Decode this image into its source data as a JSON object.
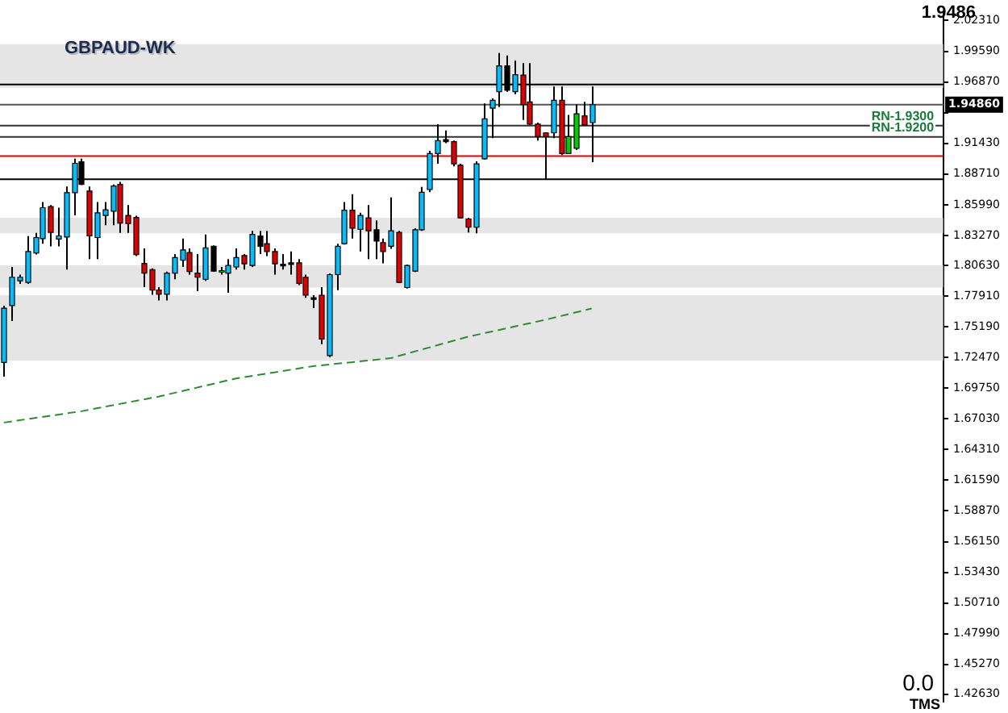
{
  "chart_data": {
    "type": "candlestick",
    "title": "GBPAUD-WK",
    "categories": [
      null,
      null,
      null,
      null,
      null,
      null,
      null,
      null,
      null,
      null,
      null,
      null,
      null,
      null,
      null,
      null,
      null,
      null,
      null,
      null,
      null,
      null,
      null,
      null,
      null,
      null,
      null,
      null,
      null,
      null,
      null,
      null,
      null,
      null,
      null,
      null,
      null,
      null,
      null,
      null,
      null,
      null,
      null,
      null,
      null,
      null,
      null,
      null,
      null,
      null,
      null,
      null,
      null,
      null,
      null,
      null,
      null,
      null,
      null,
      null,
      null,
      null,
      null,
      null,
      null,
      null,
      null,
      null,
      null,
      null,
      null,
      null,
      null,
      null,
      null,
      null,
      null,
      null,
      null,
      null,
      null,
      null,
      null,
      null,
      null,
      null,
      null,
      null,
      null,
      null,
      null,
      null,
      null,
      null,
      null,
      null,
      null,
      null,
      null,
      null,
      null,
      null,
      null,
      null,
      null,
      null,
      null,
      null,
      null,
      null,
      null,
      null,
      null,
      null,
      null,
      null,
      null,
      null,
      null,
      null,
      null,
      null
    ],
    "ohlc": [
      [
        1.7203,
        1.7706,
        1.7076,
        1.7683
      ],
      [
        1.7706,
        1.8048,
        1.7569,
        1.7957
      ],
      [
        1.7925,
        1.798,
        1.7898,
        1.7957
      ],
      [
        1.7912,
        1.8322,
        1.7898,
        1.8185
      ],
      [
        1.8172,
        1.835,
        1.8158,
        1.8309
      ],
      [
        1.8299,
        1.8624,
        1.8254,
        1.8573
      ],
      [
        1.8583,
        1.8597,
        1.8231,
        1.8354
      ],
      [
        1.8295,
        1.8573,
        1.8231,
        1.8323
      ],
      [
        1.8313,
        1.8761,
        1.8025,
        1.8706
      ],
      [
        1.8706,
        1.9008,
        1.8505,
        1.8966
      ],
      [
        1.898,
        1.9008,
        1.8775,
        1.8779
      ],
      [
        1.872,
        1.8761,
        1.8117,
        1.8323
      ],
      [
        1.8309,
        1.8624,
        1.8117,
        1.8528
      ],
      [
        1.8505,
        1.8624,
        1.8418,
        1.8555
      ],
      [
        1.8542,
        1.8779,
        1.8418,
        1.8765
      ],
      [
        1.8779,
        1.8802,
        1.835,
        1.8436
      ],
      [
        1.8505,
        1.8597,
        1.835,
        1.8432
      ],
      [
        1.8487,
        1.8501,
        1.8144,
        1.8158
      ],
      [
        1.808,
        1.8213,
        1.787,
        1.7994
      ],
      [
        1.8025,
        1.8035,
        1.7802,
        1.7843
      ],
      [
        1.7843,
        1.787,
        1.7751,
        1.7806
      ],
      [
        1.7806,
        1.8007,
        1.7751,
        1.7994
      ],
      [
        1.7994,
        1.8162,
        1.7939,
        1.8131
      ],
      [
        1.8107,
        1.8299,
        1.8048,
        1.8199
      ],
      [
        1.8176,
        1.8213,
        1.798,
        1.8007
      ],
      [
        1.7994,
        1.8162,
        1.7833,
        1.7957
      ],
      [
        1.7939,
        1.8336,
        1.7925,
        1.8217
      ],
      [
        1.8231,
        1.824,
        1.8007,
        1.8011
      ],
      [
        1.8011,
        1.8048,
        1.798,
        1.8016
      ],
      [
        1.7994,
        1.8117,
        1.782,
        1.8062
      ],
      [
        1.8048,
        1.8213,
        1.8025,
        1.8131
      ],
      [
        1.8149,
        1.8162,
        1.8025,
        1.8076
      ],
      [
        1.8062,
        1.8368,
        1.8048,
        1.8336
      ],
      [
        1.8323,
        1.8368,
        1.8162,
        1.8231
      ],
      [
        1.8254,
        1.8368,
        1.8144,
        1.8185
      ],
      [
        1.8185,
        1.8213,
        1.798,
        1.8076
      ],
      [
        1.8072,
        1.8162,
        1.8025,
        1.8058
      ],
      [
        1.8085,
        1.8185,
        1.798,
        1.8072
      ],
      [
        1.8085,
        1.8117,
        1.7888,
        1.7902
      ],
      [
        1.7957,
        1.798,
        1.7775,
        1.7798
      ],
      [
        1.7775,
        1.7798,
        1.7683,
        1.7765
      ],
      [
        1.7798,
        1.787,
        1.7364,
        1.7409
      ],
      [
        1.7263,
        1.799,
        1.725,
        1.798
      ],
      [
        1.798,
        1.8254,
        1.7843,
        1.8231
      ],
      [
        1.8254,
        1.8624,
        1.8247,
        1.8551
      ],
      [
        1.8551,
        1.8692,
        1.8299,
        1.8391
      ],
      [
        1.8381,
        1.8528,
        1.8185,
        1.8505
      ],
      [
        1.8483,
        1.8597,
        1.8117,
        1.8368
      ],
      [
        1.8377,
        1.846,
        1.8117,
        1.8277
      ],
      [
        1.8264,
        1.8299,
        1.808,
        1.8185
      ],
      [
        1.8231,
        1.8665,
        1.8209,
        1.8368
      ],
      [
        1.8354,
        1.8368,
        1.7905,
        1.7912
      ],
      [
        1.7866,
        1.807,
        1.7857,
        1.8062
      ],
      [
        1.8011,
        1.8391,
        1.8003,
        1.8377
      ],
      [
        1.8377,
        1.8757,
        1.8368,
        1.871
      ],
      [
        1.8734,
        1.9076,
        1.871,
        1.9053
      ],
      [
        1.9053,
        1.9313,
        1.8962,
        1.9168
      ],
      [
        1.9176,
        1.9258,
        1.9144,
        1.9158
      ],
      [
        1.9158,
        1.9168,
        1.8939,
        1.8962
      ],
      [
        1.8949,
        1.8962,
        1.8476,
        1.8483
      ],
      [
        1.8473,
        1.8483,
        1.8354,
        1.8401
      ],
      [
        1.8401,
        1.8984,
        1.8346,
        1.8962
      ],
      [
        1.9007,
        1.9497,
        1.9,
        1.936
      ],
      [
        1.9455,
        1.9542,
        1.919,
        1.9524
      ],
      [
        1.9601,
        1.9943,
        1.9464,
        1.9829
      ],
      [
        1.9829,
        1.9921,
        1.9601,
        1.9614
      ],
      [
        1.9601,
        1.9875,
        1.9579,
        1.9751
      ],
      [
        1.9747,
        1.9853,
        1.935,
        1.9487
      ],
      [
        1.951,
        1.9853,
        1.9305,
        1.9313
      ],
      [
        1.9313,
        1.9327,
        1.9168,
        1.9203
      ],
      [
        1.9236,
        1.924,
        1.8825,
        1.9203
      ],
      [
        1.9236,
        1.9647,
        1.919,
        1.9524
      ],
      [
        1.9524,
        1.9647,
        1.9039,
        1.9053
      ],
      [
        1.9053,
        1.9395,
        1.9049,
        1.9203
      ],
      [
        1.9099,
        1.9487,
        1.9086,
        1.9405
      ],
      [
        1.9387,
        1.951,
        1.9298,
        1.9305
      ],
      [
        1.9327,
        1.9647,
        1.8976,
        1.9486
      ],
      null,
      null,
      null,
      null,
      null,
      null,
      null,
      null,
      null,
      null,
      null,
      null,
      null,
      null,
      null,
      null,
      null,
      null,
      null,
      null,
      null,
      null,
      null,
      null,
      null,
      null,
      null,
      null,
      null,
      null,
      null,
      null,
      null,
      null,
      null,
      null,
      null,
      null,
      null,
      null,
      null,
      null,
      null,
      null,
      null
    ],
    "colors": [
      "#00bfff",
      "#00bfff",
      "#00bfff",
      "#00bfff",
      "#00bfff",
      "#00bfff",
      "#e00000",
      "#00bfff",
      "#00bfff",
      "#00bfff",
      "#000000",
      "#e00000",
      "#00bfff",
      "#00bfff",
      "#00bfff",
      "#e00000",
      "#e00000",
      "#e00000",
      "#e00000",
      "#e00000",
      "#e00000",
      "#00bfff",
      "#00bfff",
      "#00bfff",
      "#e00000",
      "#e00000",
      "#00bfff",
      "#000000",
      "#00cc00",
      "#00bfff",
      "#00bfff",
      "#e00000",
      "#00bfff",
      "#000000",
      "#e00000",
      "#e00000",
      "#000000",
      "#000000",
      "#e00000",
      "#e00000",
      "#000000",
      "#e00000",
      "#00bfff",
      "#00bfff",
      "#00bfff",
      "#e00000",
      "#00bfff",
      "#e00000",
      "#000000",
      "#e00000",
      "#00bfff",
      "#e00000",
      "#00bfff",
      "#00bfff",
      "#00bfff",
      "#00bfff",
      "#00bfff",
      "#000000",
      "#e00000",
      "#e00000",
      "#e00000",
      "#00bfff",
      "#00bfff",
      "#00bfff",
      "#00bfff",
      "#000000",
      "#00bfff",
      "#e00000",
      "#e00000",
      "#e00000",
      "#e00000",
      "#00bfff",
      "#e00000",
      "#00cc00",
      "#00cc00",
      "#e00000",
      "#00bfff",
      null,
      null,
      null,
      null,
      null,
      null,
      null,
      null,
      null,
      null,
      null,
      null,
      null,
      null,
      null,
      null,
      null,
      null,
      null,
      null,
      null,
      null,
      null,
      null,
      null,
      null,
      null,
      null,
      null,
      null,
      null,
      null,
      null,
      null,
      null,
      null,
      null,
      null,
      null,
      null,
      null,
      null,
      null,
      null,
      null
    ],
    "series": [
      {
        "type": "line",
        "color": "#2e8b2e",
        "line_style": "dashed",
        "marker": "none",
        "values": [
          1.667,
          null,
          null,
          null,
          null,
          null,
          null,
          null,
          null,
          null,
          1.677,
          null,
          null,
          null,
          null,
          null,
          null,
          null,
          null,
          null,
          1.69,
          null,
          null,
          null,
          null,
          null,
          null,
          null,
          null,
          null,
          1.706,
          null,
          null,
          null,
          null,
          null,
          null,
          null,
          null,
          null,
          1.717,
          null,
          null,
          null,
          null,
          null,
          null,
          null,
          null,
          null,
          1.724,
          null,
          null,
          null,
          null,
          null,
          null,
          null,
          null,
          null,
          1.743,
          null,
          null,
          null,
          null,
          null,
          null,
          null,
          null,
          null,
          1.758,
          null,
          null,
          null,
          null,
          null,
          1.768,
          null,
          null,
          null,
          null,
          null,
          null,
          null,
          null,
          null,
          null,
          null,
          null,
          null,
          null,
          null,
          null,
          null,
          null,
          null,
          null,
          null,
          null,
          null,
          null,
          null,
          null,
          null,
          null,
          null,
          null,
          null,
          null,
          null,
          null,
          null,
          null,
          null,
          null,
          null,
          null,
          null,
          null,
          null,
          null,
          null
        ]
      }
    ],
    "ylim": [
      1.42,
      2.031
    ],
    "yticks": [
      {
        "value": 2.0231,
        "label": "2.02310"
      },
      {
        "value": 1.9959,
        "label": "1.99590"
      },
      {
        "value": 1.9687,
        "label": "1.96870"
      },
      {
        "value": 1.9414,
        "label": null
      },
      {
        "value": 1.9143,
        "label": "1.91430"
      },
      {
        "value": 1.8871,
        "label": "1.88710"
      },
      {
        "value": 1.8599,
        "label": "1.85990"
      },
      {
        "value": 1.8327,
        "label": "1.83270"
      },
      {
        "value": 1.8063,
        "label": "1.80630"
      },
      {
        "value": 1.7791,
        "label": "1.77910"
      },
      {
        "value": 1.7519,
        "label": "1.75190"
      },
      {
        "value": 1.7247,
        "label": "1.72470"
      },
      {
        "value": 1.6975,
        "label": "1.69750"
      },
      {
        "value": 1.6703,
        "label": "1.67030"
      },
      {
        "value": 1.6431,
        "label": "1.64310"
      },
      {
        "value": 1.6159,
        "label": "1.61590"
      },
      {
        "value": 1.5887,
        "label": "1.58870"
      },
      {
        "value": 1.5615,
        "label": "1.56150"
      },
      {
        "value": 1.5343,
        "label": "1.53430"
      },
      {
        "value": 1.5071,
        "label": "1.50710"
      },
      {
        "value": 1.4799,
        "label": "1.47990"
      },
      {
        "value": 1.4527,
        "label": "1.45270"
      },
      {
        "value": 1.4263,
        "label": "1.42630"
      }
    ],
    "ref_lines": [
      {
        "axis": "y",
        "value": 1.9486,
        "label": "1.94860",
        "color": "#555555"
      },
      {
        "axis": "y",
        "value": 1.9665,
        "color": "#000000"
      },
      {
        "axis": "y",
        "value": 1.93,
        "label": "RN-1.9300",
        "color": "#333333"
      },
      {
        "axis": "y",
        "value": 1.92,
        "label": "RN-1.9200",
        "color": "#333333"
      },
      {
        "axis": "y",
        "value": 1.9031,
        "color": "#e00000"
      },
      {
        "axis": "y",
        "value": 1.8825,
        "color": "#000000"
      }
    ],
    "bands": [
      {
        "axis": "y",
        "from": 1.9634,
        "to": 2.0021,
        "color": "#d3d3d3"
      },
      {
        "axis": "y",
        "from": 1.8346,
        "to": 1.8483,
        "color": "#d3d3d3"
      },
      {
        "axis": "y",
        "from": 1.7866,
        "to": 1.8062,
        "color": "#d3d3d3"
      },
      {
        "axis": "y",
        "from": 1.7217,
        "to": 1.7798,
        "color": "#d3d3d3"
      }
    ],
    "annotations": [
      "1.9486",
      "0.0",
      "TMS"
    ],
    "tick_labels": "y",
    "grid": false,
    "legend": false
  }
}
